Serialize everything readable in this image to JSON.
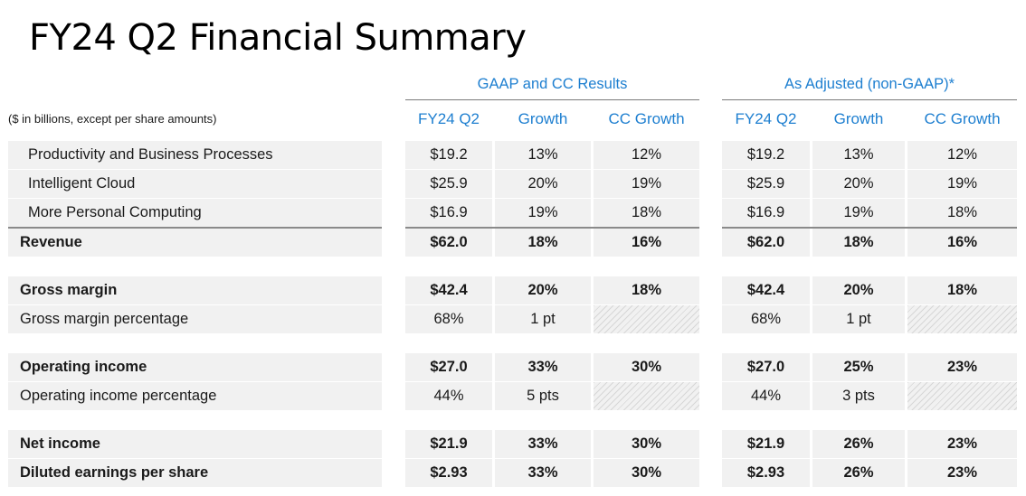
{
  "title": "FY24 Q2 Financial Summary",
  "note": "($ in billions, except per share amounts)",
  "groups": {
    "gaap": "GAAP and CC Results",
    "adjusted": "As Adjusted (non-GAAP)*"
  },
  "columns": [
    "FY24 Q2",
    "Growth",
    "CC Growth",
    "FY24 Q2",
    "Growth",
    "CC Growth"
  ],
  "accent_color": "#1e7fd0",
  "rows": [
    {
      "label": "Productivity and Business Processes",
      "values": [
        "$19.2",
        "13%",
        "12%",
        "$19.2",
        "13%",
        "12%"
      ]
    },
    {
      "label": "Intelligent Cloud",
      "values": [
        "$25.9",
        "20%",
        "19%",
        "$25.9",
        "20%",
        "19%"
      ]
    },
    {
      "label": "More Personal Computing",
      "values": [
        "$16.9",
        "19%",
        "18%",
        "$16.9",
        "19%",
        "18%"
      ]
    },
    {
      "label": "Revenue",
      "values": [
        "$62.0",
        "18%",
        "16%",
        "$62.0",
        "18%",
        "16%"
      ]
    },
    {
      "label": "Gross margin",
      "values": [
        "$42.4",
        "20%",
        "18%",
        "$42.4",
        "20%",
        "18%"
      ]
    },
    {
      "label": "Gross margin percentage",
      "values": [
        "68%",
        "1 pt",
        "",
        "68%",
        "1 pt",
        ""
      ]
    },
    {
      "label": "Operating income",
      "values": [
        "$27.0",
        "33%",
        "30%",
        "$27.0",
        "25%",
        "23%"
      ]
    },
    {
      "label": "Operating income percentage",
      "values": [
        "44%",
        "5 pts",
        "",
        "44%",
        "3 pts",
        ""
      ]
    },
    {
      "label": "Net income",
      "values": [
        "$21.9",
        "33%",
        "30%",
        "$21.9",
        "26%",
        "23%"
      ]
    },
    {
      "label": "Diluted earnings per share",
      "values": [
        "$2.93",
        "33%",
        "30%",
        "$2.93",
        "26%",
        "23%"
      ]
    }
  ]
}
